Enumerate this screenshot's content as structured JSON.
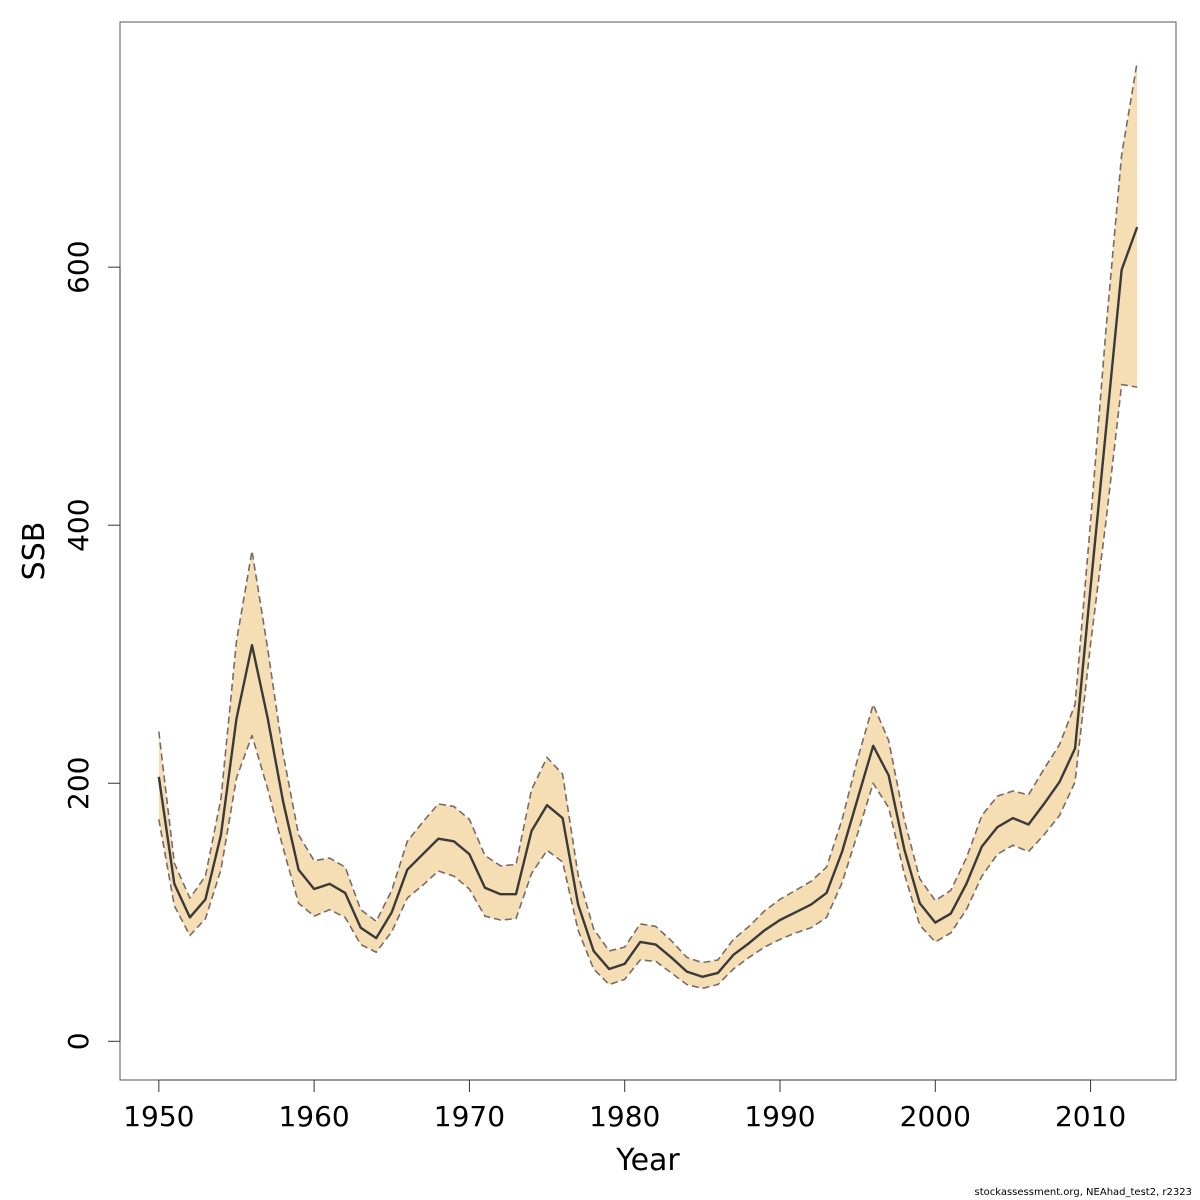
{
  "chart_data": {
    "type": "line",
    "title": "",
    "xlabel": "Year",
    "ylabel": "SSB",
    "xlim": [
      1947.5,
      2015.5
    ],
    "ylim": [
      -30,
      790
    ],
    "xticks": [
      1950,
      1960,
      1970,
      1980,
      1990,
      2000,
      2010
    ],
    "yticks": [
      0,
      200,
      400,
      600
    ],
    "grid": false,
    "legend": "none",
    "colors": {
      "band": "#f5deb3",
      "bound_line": "#7a6a66",
      "estimate_line": "#3a3a3a",
      "frame": "#555555"
    },
    "x": [
      1950,
      1951,
      1952,
      1953,
      1954,
      1955,
      1956,
      1957,
      1958,
      1959,
      1960,
      1961,
      1962,
      1963,
      1964,
      1965,
      1966,
      1967,
      1968,
      1969,
      1970,
      1971,
      1972,
      1973,
      1974,
      1975,
      1976,
      1977,
      1978,
      1979,
      1980,
      1981,
      1982,
      1983,
      1984,
      1985,
      1986,
      1987,
      1988,
      1989,
      1990,
      1991,
      1992,
      1993,
      1994,
      1995,
      1996,
      1997,
      1998,
      1999,
      2000,
      2001,
      2002,
      2003,
      2004,
      2005,
      2006,
      2007,
      2008,
      2009,
      2010,
      2011,
      2012,
      2013
    ],
    "series": [
      {
        "role": "estimate",
        "style": "solid",
        "values": [
          205,
          122,
          96,
          110,
          160,
          250,
          307,
          251,
          186,
          133,
          118,
          122,
          115,
          88,
          80,
          100,
          133,
          145,
          157,
          155,
          145,
          119,
          114,
          114,
          163,
          183,
          173,
          106,
          70,
          56,
          60,
          77,
          75,
          65,
          54,
          50,
          53,
          67,
          76,
          86,
          94,
          100,
          106,
          115,
          147,
          188,
          229,
          206,
          149,
          107,
          92,
          99,
          122,
          151,
          166,
          173,
          168,
          184,
          201,
          227,
          352,
          475,
          598,
          631
        ]
      },
      {
        "role": "upper",
        "style": "dashed",
        "values": [
          240,
          138,
          111,
          128,
          188,
          310,
          380,
          305,
          223,
          160,
          140,
          142,
          135,
          102,
          93,
          117,
          155,
          170,
          184,
          182,
          172,
          144,
          136,
          137,
          195,
          220,
          207,
          129,
          87,
          70,
          73,
          91,
          89,
          78,
          65,
          61,
          63,
          79,
          89,
          101,
          110,
          117,
          124,
          135,
          172,
          219,
          261,
          233,
          172,
          126,
          109,
          117,
          142,
          175,
          190,
          194,
          191,
          211,
          230,
          261,
          403,
          553,
          687,
          759
        ]
      },
      {
        "role": "lower",
        "style": "dashed",
        "values": [
          172,
          105,
          82,
          95,
          133,
          204,
          237,
          196,
          150,
          107,
          97,
          102,
          96,
          75,
          69,
          85,
          111,
          121,
          132,
          128,
          118,
          97,
          94,
          95,
          130,
          148,
          139,
          86,
          56,
          44,
          48,
          63,
          62,
          53,
          44,
          41,
          44,
          56,
          65,
          73,
          79,
          84,
          88,
          96,
          123,
          161,
          200,
          181,
          130,
          90,
          77,
          84,
          102,
          128,
          145,
          152,
          147,
          160,
          175,
          201,
          308,
          404,
          509,
          507
        ]
      }
    ]
  },
  "credit": "stockassessment.org, NEAhad_test2, r2323"
}
